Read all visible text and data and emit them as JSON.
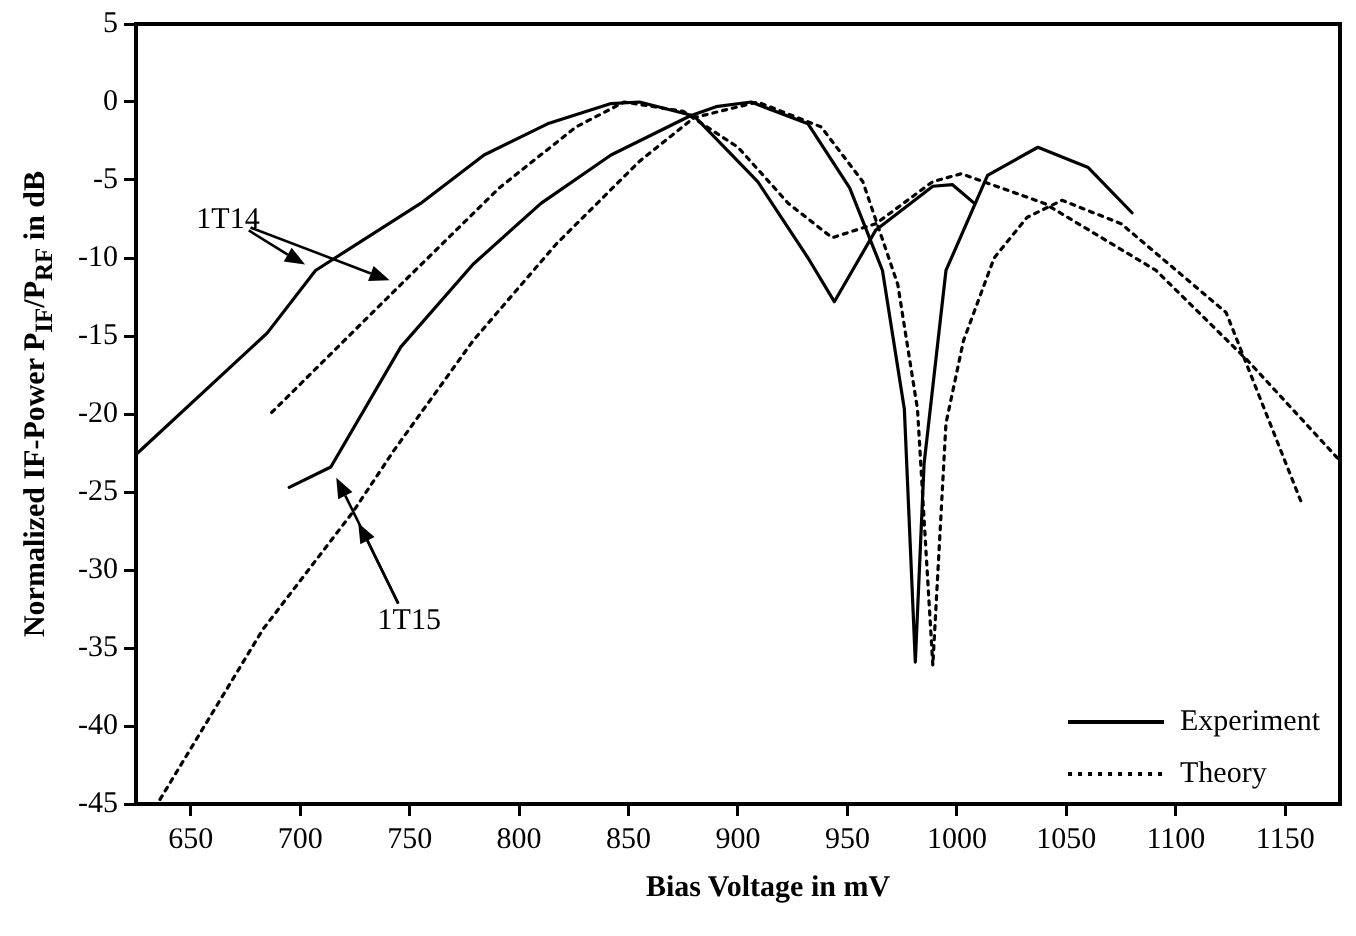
{
  "chart_data": {
    "type": "line",
    "xlabel": "Bias Voltage  in mV",
    "ylabel": "Normalized IF-Power P$_{IF}$/P$_{RF}$  in dB",
    "xlim": [
      625,
      1175
    ],
    "xticks": [
      650,
      700,
      750,
      800,
      850,
      900,
      950,
      1000,
      1050,
      1100,
      1150
    ],
    "ylim": [
      -45,
      5
    ],
    "yticks": [
      5,
      0,
      -5,
      -10,
      -15,
      -20,
      -25,
      -30,
      -35,
      -40,
      -45
    ],
    "grid": false,
    "legend": "bottom right",
    "marker": "none",
    "annotations": [
      "1T14",
      "1T15"
    ],
    "series": [
      {
        "name": "Experiment",
        "color": "#000000",
        "line_style": "solid",
        "x": [
          625,
          685,
          707,
          755,
          784,
          813,
          842,
          855,
          880,
          909,
          932,
          944,
          963,
          989,
          998,
          1008
        ],
        "values": [
          -22.6,
          -14.8,
          -10.8,
          -6.5,
          -3.4,
          -1.4,
          -0.1,
          0,
          -0.9,
          -5.1,
          -10,
          -12.8,
          -8.2,
          -5.4,
          -5.3,
          -6.5
        ]
      },
      {
        "name": "Theory",
        "color": "#000000",
        "line_style": "dotted",
        "x": [
          687,
          746,
          791,
          826,
          848,
          875,
          900,
          923,
          943,
          963,
          989,
          1002,
          1040,
          1091,
          1133,
          1175
        ],
        "values": [
          -19.9,
          -11.7,
          -5.5,
          -1.6,
          0,
          -0.6,
          -2.9,
          -6.5,
          -8.7,
          -7.8,
          -5.1,
          -4.6,
          -6.5,
          -10.8,
          -16.6,
          -23
        ]
      },
      {
        "color": "#000000",
        "line_style": "solid",
        "x": [
          695,
          714,
          746,
          779,
          810,
          842,
          878,
          890,
          906,
          932,
          951,
          966,
          976,
          981,
          985,
          995,
          1014,
          1037,
          1060,
          1080
        ],
        "values": [
          -24.7,
          -23.4,
          -15.7,
          -10.4,
          -6.5,
          -3.4,
          -0.9,
          -0.3,
          0,
          -1.4,
          -5.5,
          -10.8,
          -19.7,
          -35.9,
          -23.2,
          -10.8,
          -4.7,
          -2.9,
          -4.2,
          -7.1
        ]
      },
      {
        "color": "#000000",
        "line_style": "dotted",
        "x": [
          636,
          683,
          724,
          743,
          779,
          817,
          855,
          880,
          909,
          938,
          957,
          973,
          982,
          989,
          995,
          1003,
          1017,
          1032,
          1048,
          1075,
          1123,
          1158
        ],
        "values": [
          -44.7,
          -33.8,
          -26.3,
          -22.3,
          -15.3,
          -9.1,
          -3.8,
          -1,
          0,
          -1.6,
          -5.1,
          -11.7,
          -19.7,
          -36.1,
          -20.6,
          -15.3,
          -10,
          -7.4,
          -6.3,
          -7.8,
          -13.5,
          -25.9
        ]
      }
    ]
  }
}
